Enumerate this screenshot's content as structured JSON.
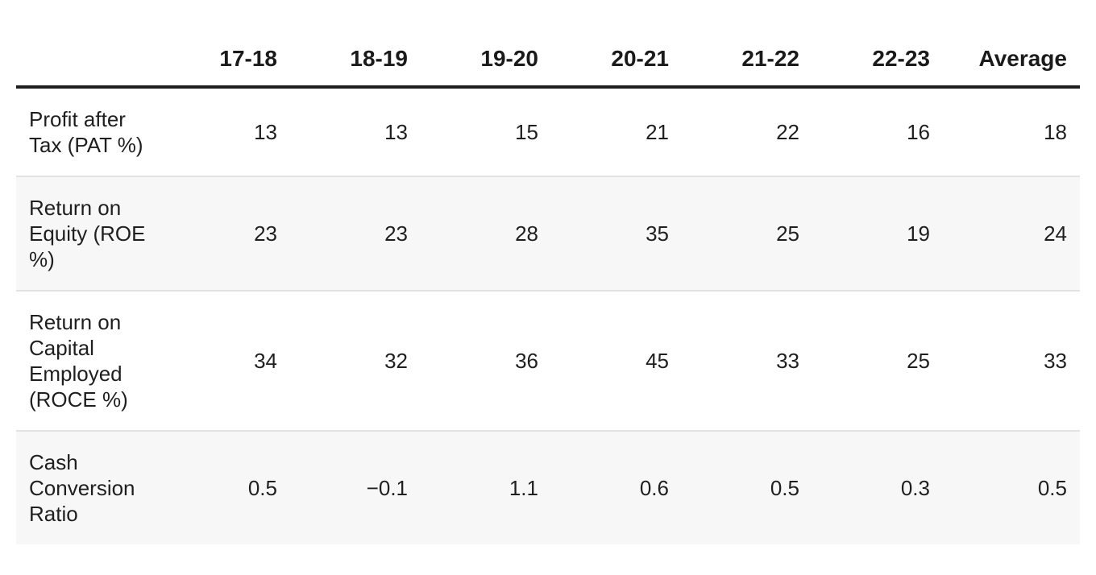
{
  "table": {
    "columns": [
      "",
      "17-18",
      "18-19",
      "19-20",
      "20-21",
      "21-22",
      "22-23",
      "Average"
    ],
    "rows": [
      {
        "label": "Profit after Tax (PAT %)",
        "values": [
          "13",
          "13",
          "15",
          "21",
          "22",
          "16",
          "18"
        ]
      },
      {
        "label": "Return on Equity (ROE %)",
        "values": [
          "23",
          "23",
          "28",
          "35",
          "25",
          "19",
          "24"
        ]
      },
      {
        "label": "Return on Capital Employed (ROCE %)",
        "values": [
          "34",
          "32",
          "36",
          "45",
          "33",
          "25",
          "33"
        ]
      },
      {
        "label": "Cash Conversion Ratio",
        "values": [
          "0.5",
          "−0.1",
          "1.1",
          "0.6",
          "0.5",
          "0.3",
          "0.5"
        ]
      }
    ]
  },
  "colors": {
    "text": "#1f1f1f",
    "header_rule": "#1f1f1f",
    "row_divider": "#e2e2e2",
    "alt_row_bg": "#f7f7f7"
  }
}
